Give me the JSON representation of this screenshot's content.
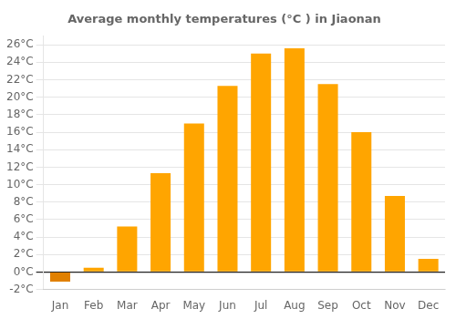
{
  "chart_data": {
    "type": "bar",
    "title": "Average monthly temperatures (°C ) in Jiaonan",
    "categories": [
      "Jan",
      "Feb",
      "Mar",
      "Apr",
      "May",
      "Jun",
      "Jul",
      "Aug",
      "Sep",
      "Oct",
      "Nov",
      "Dec"
    ],
    "values": [
      -1.1,
      0.5,
      5.2,
      11.3,
      17.0,
      21.3,
      25.0,
      25.6,
      21.5,
      16.0,
      8.7,
      1.5
    ],
    "colors": [
      "#E08000",
      "#FFA500",
      "#FFA500",
      "#FFA500",
      "#FFA500",
      "#FFA500",
      "#FFA500",
      "#FFA500",
      "#FFA500",
      "#FFA500",
      "#FFA500",
      "#FFA500"
    ],
    "ylim": [
      -2,
      27
    ],
    "yticks": [
      {
        "value": -2,
        "label": "-2°C"
      },
      {
        "value": 0,
        "label": "0°C"
      },
      {
        "value": 2,
        "label": "2°C"
      },
      {
        "value": 4,
        "label": "4°C"
      },
      {
        "value": 6,
        "label": "6°C"
      },
      {
        "value": 8,
        "label": "8°C"
      },
      {
        "value": 10,
        "label": "10°C"
      },
      {
        "value": 12,
        "label": "12°C"
      },
      {
        "value": 14,
        "label": "14°C"
      },
      {
        "value": 16,
        "label": "16°C"
      },
      {
        "value": 18,
        "label": "18°C"
      },
      {
        "value": 20,
        "label": "20°C"
      },
      {
        "value": 22,
        "label": "22°C"
      },
      {
        "value": 24,
        "label": "24°C"
      },
      {
        "value": 26,
        "label": "26°C"
      }
    ],
    "grid": true
  }
}
